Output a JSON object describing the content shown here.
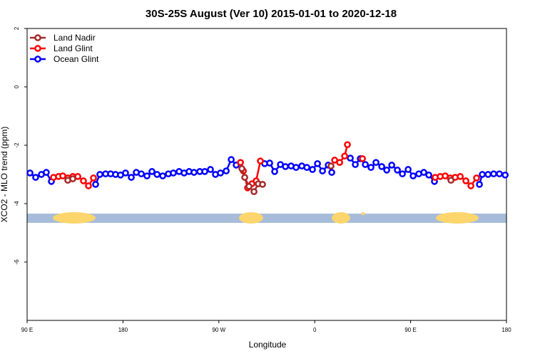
{
  "chart_data": {
    "type": "line",
    "title": "30S-25S August (Ver 10)   2015-01-01 to 2020-12-18",
    "x_label": "Longitude",
    "y_label": "XCO2 - MLO trend (ppm)",
    "xlim": [
      90,
      540
    ],
    "ylim": [
      -8,
      2
    ],
    "xticks": [
      {
        "value": 90,
        "label": "90 E"
      },
      180,
      {
        "value": 270,
        "label": "90 W"
      },
      {
        "value": 360,
        "label": "0"
      },
      {
        "value": 450,
        "label": "90 E"
      },
      {
        "value": 540,
        "label": "180"
      }
    ],
    "yticks": [
      -6,
      -4,
      -2,
      0,
      2
    ],
    "legend": "top-left",
    "series": [
      {
        "name": "Land Nadir",
        "color": "#a52a2a",
        "x": [
          128.2,
          132.9,
          null,
          291.6,
          294.3,
          298.3,
          303,
          307,
          311,
          null,
          375.3,
          null,
          487.9
        ],
        "values": [
          -3.2,
          -3.15,
          null,
          -2.8,
          -3.1,
          -3.41,
          -3.59,
          -3.32,
          -3.34,
          null,
          -2.71,
          null,
          -3.2
        ]
      },
      {
        "name": "Land Glint",
        "color": "#ff0000",
        "x": [
          114.8,
          119.5,
          123.5,
          128.2,
          132.9,
          137.6,
          142.9,
          147.6,
          152.3,
          null,
          290.3,
          293,
          297,
          301,
          305,
          309,
          null,
          378.7,
          383.4,
          388.1,
          390.7,
          null,
          404.8,
          null,
          473.1,
          477.8,
          482.5,
          487.2,
          491.9,
          496.6,
          501.9,
          506.6,
          511.9
        ],
        "values": [
          -3.1,
          -3.07,
          -3.05,
          -3.12,
          -3.07,
          -3.07,
          -3.22,
          -3.39,
          -3.12,
          null,
          -2.59,
          -2.88,
          -3.46,
          -3.32,
          -3.22,
          -2.54,
          null,
          -2.51,
          -2.59,
          -2.37,
          -1.98,
          null,
          -2.46,
          null,
          -3.1,
          -3.07,
          -3.05,
          -3.12,
          -3.1,
          -3.07,
          -3.22,
          -3.39,
          -3.12
        ]
      },
      {
        "name": "Ocean Glint",
        "color": "#0000ff",
        "x": [
          92.7,
          98,
          103.4,
          108,
          112.8,
          null,
          154.3,
          158.3,
          163.7,
          168.4,
          173,
          177.7,
          182.4,
          187.8,
          192.5,
          197.2,
          202.5,
          207.2,
          212,
          217.3,
          222.6,
          227.3,
          232.7,
          237.4,
          242.1,
          246.7,
          252.1,
          256.8,
          262.1,
          266.8,
          271.5,
          276.9,
          281.6,
          286.3,
          null,
          313,
          317.7,
          322.4,
          327.8,
          332.5,
          337.8,
          342.5,
          347.9,
          352.6,
          357.9,
          362.6,
          367.3,
          372.7,
          376,
          null,
          393.4,
          398.1,
          402.8,
          407.5,
          412.8,
          417.5,
          422.9,
          427.6,
          432.3,
          437.6,
          442.3,
          447.7,
          452.4,
          457.7,
          462.4,
          467.1,
          472.4,
          null,
          514.6,
          517.3,
          522.7,
          528,
          533.4,
          538.8
        ],
        "values": [
          -2.95,
          -3.1,
          -3.0,
          -2.93,
          -3.24,
          null,
          -3.34,
          -3.0,
          -2.98,
          -2.98,
          -3.0,
          -3.02,
          -2.95,
          -3.1,
          -2.93,
          -2.98,
          -3.05,
          -2.9,
          -3.0,
          -3.05,
          -2.98,
          -2.95,
          -2.9,
          -2.95,
          -2.9,
          -2.93,
          -2.9,
          -2.9,
          -2.83,
          -3.0,
          -2.95,
          -2.88,
          -2.49,
          -2.68,
          null,
          -2.63,
          -2.61,
          -2.9,
          -2.66,
          -2.73,
          -2.71,
          -2.76,
          -2.71,
          -2.76,
          -2.83,
          -2.63,
          -2.88,
          -2.68,
          -2.93,
          null,
          -2.44,
          -2.66,
          -2.46,
          -2.66,
          -2.76,
          -2.59,
          -2.73,
          -2.85,
          -2.68,
          -2.85,
          -2.98,
          -2.83,
          -3.05,
          -2.98,
          -2.93,
          -3.02,
          -3.24,
          null,
          -3.34,
          -3.0,
          -3.0,
          -2.98,
          -2.98,
          -3.02
        ]
      }
    ]
  }
}
